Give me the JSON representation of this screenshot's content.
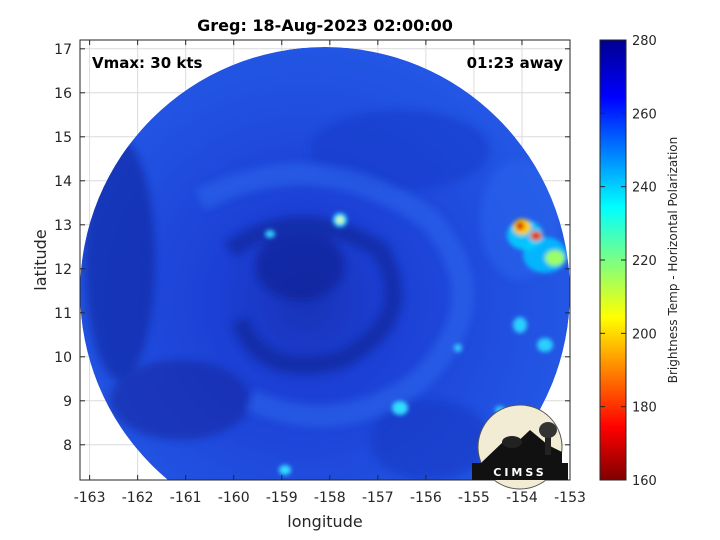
{
  "chart_data": {
    "type": "heatmap",
    "title": "Greg: 18-Aug-2023 02:00:00",
    "xlabel": "longitude",
    "ylabel": "latitude",
    "xlim": [
      -163.2,
      -153
    ],
    "ylim": [
      7.2,
      17.2
    ],
    "x_ticks": [
      "-163",
      "-162",
      "-161",
      "-160",
      "-159",
      "-158",
      "-157",
      "-156",
      "-155",
      "-154",
      "-153"
    ],
    "y_ticks": [
      "8",
      "9",
      "10",
      "11",
      "12",
      "13",
      "14",
      "15",
      "16",
      "17"
    ],
    "grid": true,
    "annotation_left": "Vmax: 30 kts",
    "annotation_right": "01:23 away",
    "colorbar": {
      "label": "Brightness Temp - Horizontal Polarization",
      "range": [
        160,
        280
      ],
      "ticks": [
        "280",
        "260",
        "240",
        "220",
        "200",
        "180",
        "160"
      ],
      "colors": [
        "#7f0000",
        "#ff0000",
        "#ffff00",
        "#00ffff",
        "#0000ff",
        "#00008f"
      ]
    },
    "features": [
      {
        "name": "warm-cell",
        "lon": -153.8,
        "lat": 12.8,
        "value": 175
      },
      {
        "name": "cold-core",
        "lon": -158.2,
        "lat": 12.2,
        "value": 268
      }
    ],
    "logo": "CIMSS"
  }
}
